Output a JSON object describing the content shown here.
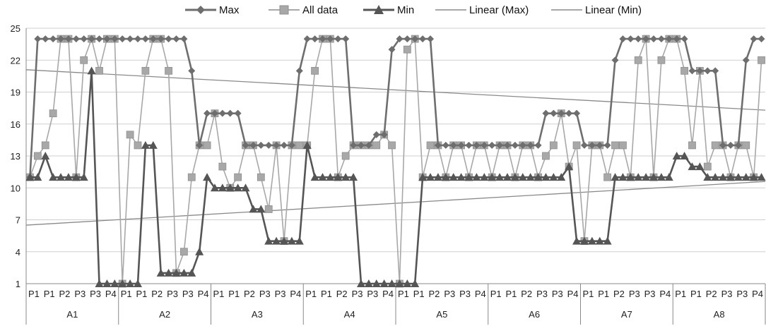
{
  "colors": {
    "max": "#6e6e6e",
    "all": "#a8a8a8",
    "min": "#555555",
    "linear_max": "#8a8a8a",
    "linear_min": "#8a8a8a",
    "grid": "#cfcfcf",
    "axis": "#888888"
  },
  "chart_data": {
    "type": "line",
    "title": "",
    "xlabel": "",
    "ylabel": "",
    "ylim": [
      1,
      25
    ],
    "yticks": [
      1,
      4,
      7,
      10,
      13,
      16,
      19,
      22,
      25
    ],
    "grid": true,
    "legend_position": "top",
    "legend": [
      {
        "label": "Max",
        "marker": "diamond"
      },
      {
        "label": "All data",
        "marker": "square"
      },
      {
        "label": "Min",
        "marker": "triangle"
      },
      {
        "label": "Linear (Max)",
        "marker": "none"
      },
      {
        "label": "Linear (Min)",
        "marker": "none"
      }
    ],
    "groups": [
      "A1",
      "A2",
      "A3",
      "A4",
      "A5",
      "A6",
      "A7",
      "A8"
    ],
    "group_tick_labels": [
      [
        "P1",
        "P1",
        "P2",
        "P3",
        "P3",
        "P4"
      ],
      [
        "P1",
        "P1",
        "P2",
        "P3",
        "P3",
        "P4"
      ],
      [
        "P1",
        "P1",
        "P2",
        "P3",
        "P3",
        "P4"
      ],
      [
        "P1",
        "P1",
        "P2",
        "P3",
        "P3",
        "P4"
      ],
      [
        "P1",
        "P1",
        "P2",
        "P3",
        "P3",
        "P4"
      ],
      [
        "P1",
        "P1",
        "P2",
        "P3",
        "P3",
        "P4"
      ],
      [
        "P1",
        "P1",
        "P2",
        "P3",
        "P3",
        "P4"
      ],
      [
        "P1",
        "P1",
        "P2",
        "P3",
        "P3",
        "P4"
      ]
    ],
    "points_per_group": 12,
    "series": [
      {
        "name": "Max",
        "values": [
          11,
          24,
          24,
          24,
          24,
          24,
          24,
          24,
          24,
          24,
          24,
          24,
          24,
          24,
          24,
          24,
          24,
          24,
          24,
          24,
          24,
          21,
          14,
          17,
          17,
          17,
          17,
          17,
          14,
          14,
          14,
          14,
          14,
          14,
          14,
          21,
          24,
          24,
          24,
          24,
          24,
          24,
          14,
          14,
          14,
          15,
          15,
          23,
          24,
          24,
          24,
          24,
          24,
          14,
          14,
          14,
          14,
          14,
          14,
          14,
          14,
          14,
          14,
          14,
          14,
          14,
          14,
          17,
          17,
          17,
          17,
          17,
          14,
          14,
          14,
          14,
          22,
          24,
          24,
          24,
          24,
          24,
          24,
          24,
          24,
          24,
          21,
          21,
          21,
          21,
          14,
          14,
          14,
          22,
          24,
          24
        ]
      },
      {
        "name": "All data",
        "values": [
          11,
          13,
          14,
          17,
          24,
          24,
          11,
          22,
          24,
          21,
          24,
          24,
          1,
          15,
          14,
          21,
          24,
          24,
          21,
          2,
          4,
          11,
          14,
          14,
          17,
          12,
          10,
          11,
          14,
          14,
          11,
          8,
          14,
          5,
          14,
          14,
          14,
          21,
          24,
          24,
          11,
          13,
          14,
          14,
          14,
          14,
          15,
          14,
          1,
          23,
          24,
          11,
          14,
          14,
          11,
          14,
          14,
          11,
          14,
          14,
          11,
          14,
          14,
          11,
          14,
          14,
          11,
          13,
          14,
          17,
          12,
          14,
          5,
          14,
          14,
          11,
          14,
          14,
          11,
          22,
          24,
          11,
          22,
          24,
          24,
          21,
          14,
          21,
          12,
          14,
          14,
          11,
          14,
          14,
          11,
          22
        ]
      },
      {
        "name": "Min",
        "values": [
          11,
          11,
          13,
          11,
          11,
          11,
          11,
          11,
          21,
          1,
          1,
          1,
          1,
          1,
          1,
          14,
          14,
          2,
          2,
          2,
          2,
          2,
          4,
          11,
          10,
          10,
          10,
          10,
          10,
          8,
          8,
          5,
          5,
          5,
          5,
          5,
          14,
          11,
          11,
          11,
          11,
          11,
          11,
          1,
          1,
          1,
          1,
          1,
          1,
          1,
          1,
          11,
          11,
          11,
          11,
          11,
          11,
          11,
          11,
          11,
          11,
          11,
          11,
          11,
          11,
          11,
          11,
          11,
          11,
          11,
          12,
          5,
          5,
          5,
          5,
          5,
          11,
          11,
          11,
          11,
          11,
          11,
          11,
          11,
          13,
          13,
          12,
          12,
          11,
          11,
          11,
          11,
          11,
          11,
          11,
          11
        ]
      }
    ],
    "trendlines": [
      {
        "name": "Linear (Max)",
        "start": 21.1,
        "end": 17.3
      },
      {
        "name": "Linear (Min)",
        "start": 6.5,
        "end": 10.6
      }
    ]
  }
}
